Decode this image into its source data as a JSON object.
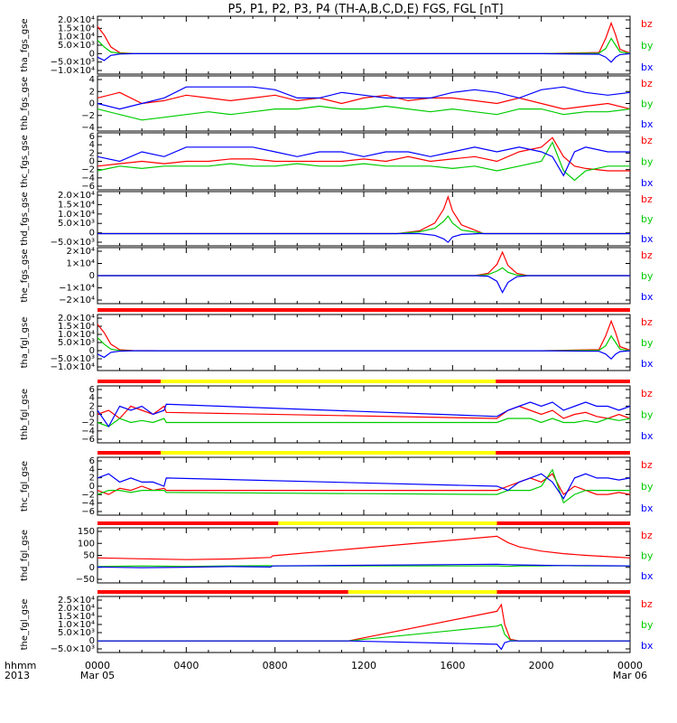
{
  "figure": {
    "title": "P5, P1, P2, P3, P4 (TH-A,B,C,D,E) FGS, FGL [nT]",
    "x_label_top": "hhmm",
    "x_label_bottom": "2013",
    "x_tick_labels": [
      "0000",
      "0400",
      "0800",
      "1200",
      "1600",
      "2000",
      "0000"
    ],
    "x_date_labels": [
      "Mar 05",
      "Mar 06"
    ]
  },
  "legend_labels": [
    "bz",
    "by",
    "bx"
  ],
  "colors": {
    "bx": "#0000ff",
    "by": "#00cc00",
    "bz": "#ff0000",
    "mode_survey": "#ff0000",
    "mode_gap": "#ffff00",
    "axes": "#000000"
  },
  "chart_data": [
    {
      "type": "line",
      "ylabel": "tha_fgs_gse",
      "y_tick_labels": [
        "2.0×10⁴",
        "1.5×10⁴",
        "1.0×10⁴",
        "5.0×10³",
        "0",
        "−5.0×10³",
        "−1.0×10⁴"
      ],
      "ylim": [
        -12000,
        22000
      ],
      "x_hours": [
        0,
        0.3,
        0.6,
        1.0,
        1.6,
        3,
        8,
        14,
        20,
        22.6,
        22.9,
        23.15,
        23.35,
        23.55,
        24
      ],
      "series": [
        {
          "name": "bz",
          "values": [
            16000,
            11000,
            4000,
            600,
            100,
            0,
            0,
            0,
            0,
            700,
            9000,
            18000,
            11000,
            2500,
            400
          ]
        },
        {
          "name": "by",
          "values": [
            8000,
            4000,
            1000,
            200,
            0,
            0,
            0,
            0,
            0,
            300,
            3000,
            9000,
            5000,
            1000,
            200
          ]
        },
        {
          "name": "bx",
          "values": [
            -2000,
            -4000,
            -1000,
            -200,
            0,
            0,
            0,
            0,
            0,
            -300,
            -2000,
            -5000,
            -2000,
            -500,
            0
          ]
        }
      ]
    },
    {
      "type": "line",
      "ylabel": "thb_fgs_gse",
      "y_tick_labels": [
        "4",
        "2",
        "0",
        "−2",
        "−4"
      ],
      "ylim": [
        -5,
        5
      ],
      "x_hours": [
        0,
        1,
        2,
        3,
        4,
        5,
        6,
        7,
        8,
        9,
        10,
        11,
        12,
        13,
        14,
        15,
        16,
        17,
        18,
        19,
        20,
        21,
        22,
        23,
        24
      ],
      "series": [
        {
          "name": "bz",
          "values": [
            1,
            2,
            0,
            0.5,
            1.5,
            1,
            0.5,
            1,
            1.5,
            0.5,
            1,
            0,
            1,
            1.5,
            0.5,
            1,
            1,
            0.5,
            0,
            1,
            0,
            -1,
            -0.5,
            0,
            -1
          ]
        },
        {
          "name": "by",
          "values": [
            -1,
            -2,
            -3,
            -2.5,
            -2,
            -1.5,
            -2,
            -1.5,
            -1,
            -1,
            -0.5,
            -1,
            -1,
            -0.5,
            -1,
            -1.5,
            -1,
            -1.5,
            -2,
            -1,
            -1,
            -2,
            -1.5,
            -1.5,
            -1
          ]
        },
        {
          "name": "bx",
          "values": [
            0,
            -1,
            0,
            1,
            3,
            3,
            3,
            3,
            2.5,
            1,
            1,
            2,
            1.5,
            1,
            1,
            1,
            2,
            2.5,
            2,
            1,
            2.5,
            3,
            2,
            1.5,
            2
          ]
        }
      ]
    },
    {
      "type": "line",
      "ylabel": "thc_fgs_gse",
      "y_tick_labels": [
        "6",
        "4",
        "2",
        "0",
        "−2",
        "−4",
        "−6"
      ],
      "ylim": [
        -6,
        6
      ],
      "x_hours": [
        0,
        1,
        2,
        3,
        4,
        5,
        6,
        7,
        8,
        9,
        10,
        11,
        12,
        13,
        14,
        15,
        16,
        17,
        18,
        19,
        20,
        20.5,
        21,
        21.5,
        22,
        23,
        24
      ],
      "series": [
        {
          "name": "bz",
          "values": [
            -1,
            -0.5,
            0,
            -0.5,
            0,
            0,
            0.5,
            0.5,
            0,
            0,
            0,
            0,
            0.5,
            0,
            1,
            0,
            0.5,
            1,
            0,
            2,
            3,
            5,
            1,
            -1,
            -1.5,
            -2,
            -2
          ]
        },
        {
          "name": "by",
          "values": [
            -2,
            -1,
            -1.5,
            -1,
            -1,
            -1,
            -0.5,
            -1,
            -1,
            -0.5,
            -1,
            -1,
            -0.5,
            -1,
            -1,
            -1,
            -1.5,
            -1,
            -2,
            -1,
            0,
            4,
            -2,
            -4,
            -2,
            -1,
            -1
          ]
        },
        {
          "name": "bx",
          "values": [
            1,
            0,
            2,
            1,
            3,
            3,
            3,
            3,
            2,
            1,
            2,
            2,
            1,
            2,
            2,
            1,
            2,
            3,
            2,
            3,
            2,
            1,
            -3,
            2,
            3,
            2,
            2
          ]
        }
      ]
    },
    {
      "type": "line",
      "ylabel": "thd_fgs_gse",
      "y_tick_labels": [
        "2.0×10⁴",
        "1.5×10⁴",
        "1.0×10⁴",
        "5.0×10³",
        "0",
        "−5.0×10³"
      ],
      "ylim": [
        -7000,
        24000
      ],
      "x_hours": [
        0,
        13.5,
        14.5,
        15.2,
        15.6,
        15.8,
        16.0,
        16.4,
        17.2,
        17.4,
        24
      ],
      "series": [
        {
          "name": "bz",
          "values": [
            0,
            0,
            1500,
            6000,
            14000,
            21000,
            13000,
            5000,
            1000,
            0,
            0
          ]
        },
        {
          "name": "by",
          "values": [
            0,
            0,
            1000,
            3000,
            7000,
            10000,
            6000,
            2000,
            500,
            0,
            0
          ]
        },
        {
          "name": "bx",
          "values": [
            0,
            0,
            0,
            -1000,
            -3000,
            -5000,
            -2000,
            -500,
            0,
            0,
            0
          ]
        }
      ]
    },
    {
      "type": "line",
      "ylabel": "the_fgs_gse",
      "y_tick_labels": [
        "2×10⁴",
        "1×10⁴",
        "0",
        "−1×10⁴",
        "−2×10⁴"
      ],
      "ylim": [
        -25000,
        25000
      ],
      "x_hours": [
        0,
        17,
        17.6,
        18.0,
        18.25,
        18.5,
        18.9,
        19.4,
        24
      ],
      "series": [
        {
          "name": "bz",
          "values": [
            0,
            0,
            2000,
            10000,
            21000,
            9000,
            2000,
            0,
            0
          ]
        },
        {
          "name": "by",
          "values": [
            0,
            0,
            1000,
            4000,
            7000,
            3000,
            500,
            0,
            0
          ]
        },
        {
          "name": "bx",
          "values": [
            0,
            0,
            -500,
            -5000,
            -15000,
            -6000,
            -1000,
            0,
            0
          ]
        }
      ]
    },
    {
      "type": "line",
      "ylabel": "tha_fgl_gse",
      "y_tick_labels": [
        "2.0×10⁴",
        "1.5×10⁴",
        "1.0×10⁴",
        "5.0×10³",
        "0",
        "−5.0×10³",
        "−1.0×10⁴"
      ],
      "ylim": [
        -12000,
        22000
      ],
      "x_hours": [
        0,
        0.3,
        0.6,
        1.0,
        1.6,
        3,
        8,
        14,
        20,
        22.6,
        22.9,
        23.15,
        23.35,
        23.55,
        24
      ],
      "series": [
        {
          "name": "bz",
          "values": [
            16000,
            11000,
            4000,
            600,
            100,
            0,
            0,
            0,
            0,
            700,
            9000,
            18000,
            11000,
            2500,
            400
          ]
        },
        {
          "name": "by",
          "values": [
            8000,
            4000,
            1000,
            200,
            0,
            0,
            0,
            0,
            0,
            300,
            3000,
            9000,
            5000,
            1000,
            200
          ]
        },
        {
          "name": "bx",
          "values": [
            -2000,
            -4000,
            -1000,
            -200,
            0,
            0,
            0,
            0,
            0,
            -300,
            -2000,
            -5000,
            -2000,
            -500,
            0
          ]
        }
      ],
      "mode_bar": [
        {
          "from": 0,
          "to": 24,
          "kind": "survey"
        }
      ]
    },
    {
      "type": "line",
      "ylabel": "thb_fgl_gse",
      "y_tick_labels": [
        "6",
        "4",
        "2",
        "0",
        "−2",
        "−4",
        "−6"
      ],
      "ylim": [
        -7,
        7
      ],
      "x_hours": [
        0,
        0.5,
        1,
        1.5,
        2,
        2.5,
        3,
        3.1,
        18,
        18.5,
        19,
        19.5,
        20,
        20.5,
        21,
        21.5,
        22,
        22.5,
        23,
        23.5,
        24
      ],
      "series": [
        {
          "name": "bz",
          "values": [
            0,
            1,
            -1,
            2,
            1,
            0,
            2,
            0.5,
            -1,
            1,
            2,
            1,
            0,
            1,
            -1,
            0,
            0.5,
            -0.5,
            -1,
            0,
            -1
          ]
        },
        {
          "name": "by",
          "values": [
            -2,
            -3,
            -1,
            -2,
            -1.5,
            -2,
            -1,
            -2,
            -2,
            -1,
            -1,
            -1,
            -2,
            -1,
            -2,
            -2,
            -1.5,
            -2,
            -1,
            -1.5,
            -1
          ]
        },
        {
          "name": "bx",
          "values": [
            1,
            -3,
            2,
            1,
            2,
            0,
            1,
            2.5,
            -0.5,
            1,
            2,
            3,
            2,
            3,
            1,
            2,
            3,
            2,
            2,
            1,
            2
          ]
        }
      ],
      "mode_bar": [
        {
          "from": 0,
          "to": 2.85,
          "kind": "survey"
        },
        {
          "from": 2.85,
          "to": 17.95,
          "kind": "gap"
        },
        {
          "from": 17.95,
          "to": 24,
          "kind": "survey"
        }
      ]
    },
    {
      "type": "line",
      "ylabel": "thc_fgl_gse",
      "y_tick_labels": [
        "6",
        "4",
        "2",
        "0",
        "−2",
        "−4",
        "−6"
      ],
      "ylim": [
        -7,
        7
      ],
      "x_hours": [
        0,
        0.5,
        1,
        1.5,
        2,
        2.5,
        3,
        3.1,
        18,
        18.5,
        19,
        19.5,
        20,
        20.5,
        21,
        21.5,
        22,
        22.5,
        23,
        23.5,
        24
      ],
      "series": [
        {
          "name": "bz",
          "values": [
            -1,
            -2,
            -0.5,
            -1,
            0,
            -1,
            -0.5,
            -1,
            -1,
            0,
            1,
            2,
            1,
            3,
            -2,
            0,
            -1,
            -2,
            -2,
            -1.5,
            -2
          ]
        },
        {
          "name": "by",
          "values": [
            -2,
            -1,
            -1,
            -1.5,
            -1,
            -1,
            -1,
            -1.5,
            -2,
            -1,
            -1,
            -1,
            0,
            4,
            -4,
            -2,
            -1,
            -1,
            -1,
            -1,
            -1
          ]
        },
        {
          "name": "bx",
          "values": [
            2,
            3,
            1,
            2,
            1,
            1,
            0,
            2,
            0,
            -1,
            1,
            2,
            3,
            1,
            -3,
            2,
            3,
            2,
            2,
            1.5,
            2
          ]
        }
      ],
      "mode_bar": [
        {
          "from": 0,
          "to": 2.85,
          "kind": "survey"
        },
        {
          "from": 2.85,
          "to": 17.95,
          "kind": "gap"
        },
        {
          "from": 17.95,
          "to": 24,
          "kind": "survey"
        }
      ]
    },
    {
      "type": "line",
      "ylabel": "thd_fgl_gse",
      "y_tick_labels": [
        "150",
        "100",
        "50",
        "0",
        "−50"
      ],
      "ylim": [
        -80,
        180
      ],
      "x_hours": [
        0,
        2,
        4,
        6,
        7.8,
        7.9,
        18.0,
        18.5,
        19,
        20,
        21,
        22,
        23,
        24
      ],
      "series": [
        {
          "name": "bz",
          "values": [
            38,
            34,
            30,
            33,
            40,
            48,
            140,
            110,
            90,
            70,
            58,
            50,
            44,
            38
          ]
        },
        {
          "name": "by",
          "values": [
            -3,
            0,
            -2,
            0,
            2,
            0,
            0,
            -2,
            0,
            0,
            2,
            0,
            0,
            0
          ]
        },
        {
          "name": "bx",
          "values": [
            -5,
            -8,
            -6,
            -3,
            -5,
            0,
            8,
            6,
            5,
            3,
            2,
            2,
            1,
            0
          ]
        }
      ],
      "mode_bar": [
        {
          "from": 0,
          "to": 8.15,
          "kind": "survey"
        },
        {
          "from": 8.15,
          "to": 18.0,
          "kind": "gap"
        },
        {
          "from": 18.0,
          "to": 24,
          "kind": "survey"
        }
      ]
    },
    {
      "type": "line",
      "ylabel": "the_fgl_gse",
      "y_tick_labels": [
        "2.5×10⁴",
        "2.0×10⁴",
        "1.5×10⁴",
        "1.0×10⁴",
        "5.0×10³",
        "0",
        "−5.0×10³"
      ],
      "ylim": [
        -7000,
        27000
      ],
      "x_hours": [
        0,
        11.3,
        18.0,
        18.2,
        18.35,
        18.6,
        19.0,
        24
      ],
      "series": [
        {
          "name": "bz",
          "values": [
            0,
            0,
            18000,
            22000,
            10000,
            1000,
            0,
            0
          ]
        },
        {
          "name": "by",
          "values": [
            0,
            0,
            9000,
            10000,
            4000,
            500,
            0,
            0
          ]
        },
        {
          "name": "bx",
          "values": [
            0,
            0,
            -2000,
            -5000,
            -1000,
            0,
            0,
            0
          ]
        }
      ],
      "mode_bar": [
        {
          "from": 0,
          "to": 11.3,
          "kind": "survey"
        },
        {
          "from": 11.3,
          "to": 18.0,
          "kind": "gap"
        },
        {
          "from": 18.0,
          "to": 24,
          "kind": "survey"
        }
      ]
    }
  ]
}
